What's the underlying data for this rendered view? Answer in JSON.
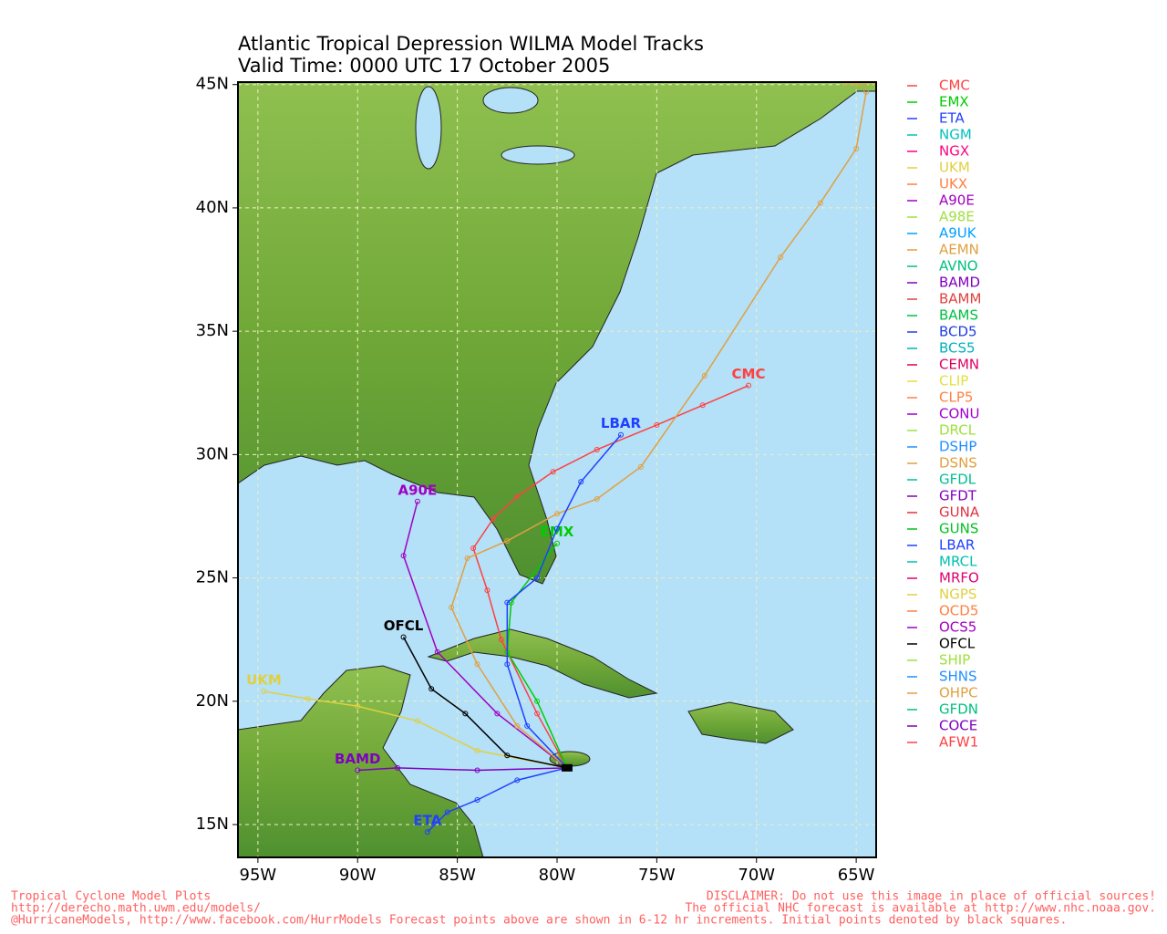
{
  "chart_data": {
    "type": "track",
    "title": "Atlantic Tropical Depression WILMA Model Tracks",
    "subtitle": "Valid Time: 0000 UTC 17 October 2005",
    "xlim": [
      -96,
      -64
    ],
    "ylim": [
      13.67,
      45.1
    ],
    "xticks": [
      {
        "value": -95,
        "label": "95W"
      },
      {
        "value": -90,
        "label": "90W"
      },
      {
        "value": -85,
        "label": "85W"
      },
      {
        "value": -80,
        "label": "80W"
      },
      {
        "value": -75,
        "label": "75W"
      },
      {
        "value": -70,
        "label": "70W"
      },
      {
        "value": -65,
        "label": "65W"
      }
    ],
    "yticks": [
      {
        "value": 15,
        "label": "15N"
      },
      {
        "value": 20,
        "label": "20N"
      },
      {
        "value": 25,
        "label": "25N"
      },
      {
        "value": 30,
        "label": "30N"
      },
      {
        "value": 35,
        "label": "35N"
      },
      {
        "value": 40,
        "label": "40N"
      },
      {
        "value": 45,
        "label": "45N"
      }
    ],
    "grid": true,
    "series": [
      {
        "name": "CMC",
        "color": "#ff4040",
        "x": [
          -79.5,
          -81,
          -82.8,
          -83.5,
          -84.2,
          -83.2,
          -82,
          -80.2,
          -78,
          -75,
          -72.7,
          -70.4
        ],
        "y": [
          17.3,
          19.5,
          22.5,
          24.5,
          26.2,
          27.4,
          28.3,
          29.3,
          30.2,
          31.2,
          32,
          32.8
        ]
      },
      {
        "name": "EMX",
        "color": "#00cc00",
        "x": [
          -79.5,
          -81,
          -82.5,
          -82.3,
          -80
        ],
        "y": [
          17.3,
          20,
          22,
          24,
          26.4
        ]
      },
      {
        "name": "ETA",
        "color": "#2040ff",
        "x": [
          -79.5,
          -82,
          -84,
          -85.5,
          -86.5
        ],
        "y": [
          17.3,
          16.8,
          16,
          15.5,
          14.7
        ]
      },
      {
        "name": "NGM",
        "color": "#00c0c0"
      },
      {
        "name": "NGX",
        "color": "#ff0080"
      },
      {
        "name": "UKM",
        "color": "#e0d040",
        "x": [
          -79.5,
          -84,
          -87,
          -90,
          -92.5,
          -94.7
        ],
        "y": [
          17.3,
          18,
          19.2,
          19.8,
          20.1,
          20.4
        ]
      },
      {
        "name": "UKX",
        "color": "#ff8040"
      },
      {
        "name": "A90E",
        "color": "#a000c0",
        "x": [
          -79.5,
          -83,
          -86,
          -87.7,
          -87
        ],
        "y": [
          17.3,
          19.5,
          22,
          25.9,
          28.1
        ]
      },
      {
        "name": "A98E",
        "color": "#a0e040"
      },
      {
        "name": "A9UK",
        "color": "#00a0ff"
      },
      {
        "name": "AEMN",
        "color": "#e0a040",
        "x": [
          -79.5,
          -82,
          -84,
          -85.3,
          -84.5,
          -82.5,
          -80,
          -78,
          -75.8,
          -72.6,
          -68.8,
          -66.8,
          -65,
          -64.5
        ],
        "y": [
          17.3,
          19,
          21.5,
          23.8,
          25.8,
          26.5,
          27.6,
          28.2,
          29.5,
          33.2,
          38,
          40.2,
          42.4,
          44.7
        ]
      },
      {
        "name": "AVNO",
        "color": "#00c080"
      },
      {
        "name": "BAMD",
        "color": "#8000c0",
        "x": [
          -79.5,
          -84,
          -88,
          -90
        ],
        "y": [
          17.3,
          17.2,
          17.3,
          17.2
        ]
      },
      {
        "name": "BAMM",
        "color": "#e04040"
      },
      {
        "name": "BAMS",
        "color": "#00c040"
      },
      {
        "name": "BCD5",
        "color": "#2040e0"
      },
      {
        "name": "BCS5",
        "color": "#00b0c0"
      },
      {
        "name": "CEMN",
        "color": "#e00060"
      },
      {
        "name": "CLIP",
        "color": "#e0e040"
      },
      {
        "name": "CLP5",
        "color": "#ff8040"
      },
      {
        "name": "CONU",
        "color": "#a000d0"
      },
      {
        "name": "DRCL",
        "color": "#a0e040"
      },
      {
        "name": "DSHP",
        "color": "#2090ff"
      },
      {
        "name": "DSNS",
        "color": "#e0a040"
      },
      {
        "name": "GFDL",
        "color": "#00c090"
      },
      {
        "name": "GFDT",
        "color": "#8000c0"
      },
      {
        "name": "GUNA",
        "color": "#e03040"
      },
      {
        "name": "GUNS",
        "color": "#00c020"
      },
      {
        "name": "LBAR",
        "color": "#2040ff",
        "x": [
          -79.5,
          -81.5,
          -82.5,
          -82.5,
          -81,
          -80,
          -78.8,
          -76.8
        ],
        "y": [
          17.3,
          19,
          21.5,
          24,
          25,
          27,
          28.9,
          30.8
        ]
      },
      {
        "name": "MRCL",
        "color": "#00c0b0"
      },
      {
        "name": "MRFO",
        "color": "#e00070"
      },
      {
        "name": "NGPS",
        "color": "#e0d040"
      },
      {
        "name": "OCD5",
        "color": "#ff8040"
      },
      {
        "name": "OCS5",
        "color": "#a000c0"
      },
      {
        "name": "OFCL",
        "color": "#000000",
        "x": [
          -79.5,
          -82.5,
          -84.6,
          -86.3,
          -87.7
        ],
        "y": [
          17.3,
          17.8,
          19.5,
          20.5,
          22.6
        ]
      },
      {
        "name": "SHIP",
        "color": "#a0e040"
      },
      {
        "name": "SHNS",
        "color": "#2090ff"
      },
      {
        "name": "OHPC",
        "color": "#e0a040"
      },
      {
        "name": "GFDN",
        "color": "#00c080"
      },
      {
        "name": "COCE",
        "color": "#8000c0"
      },
      {
        "name": "AFW1",
        "color": "#ff4040"
      }
    ]
  },
  "footer": {
    "left": [
      "Tropical Cyclone Model Plots",
      "http://derecho.math.uwm.edu/models/"
    ],
    "right": [
      "DISCLAIMER: Do not use this image in place of official sources!",
      "The official NHC forecast is available at http://www.nhc.noaa.gov."
    ],
    "bottom": "@HurricaneModels, http://www.facebook.com/HurrModels  Forecast points above are shown in 6-12 hr increments. Initial points denoted by black squares."
  }
}
